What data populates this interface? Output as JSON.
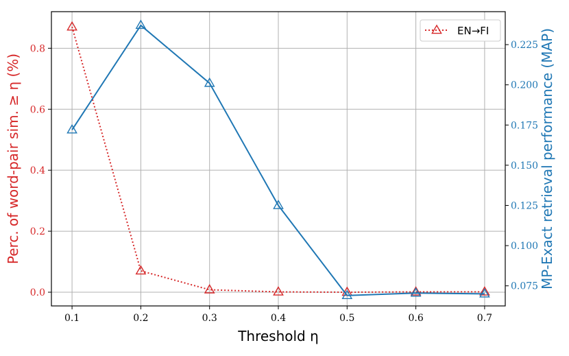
{
  "chart_data": {
    "type": "line",
    "xlabel": "Threshold η",
    "x": [
      0.1,
      0.2,
      0.3,
      0.4,
      0.5,
      0.6,
      0.7
    ],
    "x_tick_labels": [
      "0.1",
      "0.2",
      "0.3",
      "0.4",
      "0.5",
      "0.6",
      "0.7"
    ],
    "xlim": [
      0.07,
      0.73
    ],
    "left_axis": {
      "label": "Perc. of word-pair sim. ≥ η (%)",
      "color": "#d62728",
      "ylim": [
        -0.045,
        0.92
      ],
      "ticks": [
        0.0,
        0.2,
        0.4,
        0.6,
        0.8
      ],
      "tick_labels": [
        "0.0",
        "0.2",
        "0.4",
        "0.6",
        "0.8"
      ]
    },
    "right_axis": {
      "label": "MP-Exact retrieval performance (MAP)",
      "color": "#1f77b4",
      "ylim": [
        0.0625,
        0.2455
      ],
      "ticks": [
        0.075,
        0.1,
        0.125,
        0.15,
        0.175,
        0.2,
        0.225
      ],
      "tick_labels": [
        "0.075",
        "0.100",
        "0.125",
        "0.150",
        "0.175",
        "0.200",
        "0.225"
      ]
    },
    "series": [
      {
        "name": "EN→FI",
        "axis": "left",
        "color": "#d62728",
        "line_style": "dotted",
        "marker": "triangle-open",
        "values": [
          0.87,
          0.07,
          0.008,
          0.001,
          0.0,
          0.001,
          0.001
        ]
      },
      {
        "axis": "right",
        "color": "#1f77b4",
        "line_style": "solid",
        "marker": "triangle-open",
        "values": [
          0.172,
          0.237,
          0.201,
          0.125,
          0.069,
          0.0705,
          0.07
        ]
      }
    ],
    "grid": true,
    "legend_position": "top-right"
  }
}
